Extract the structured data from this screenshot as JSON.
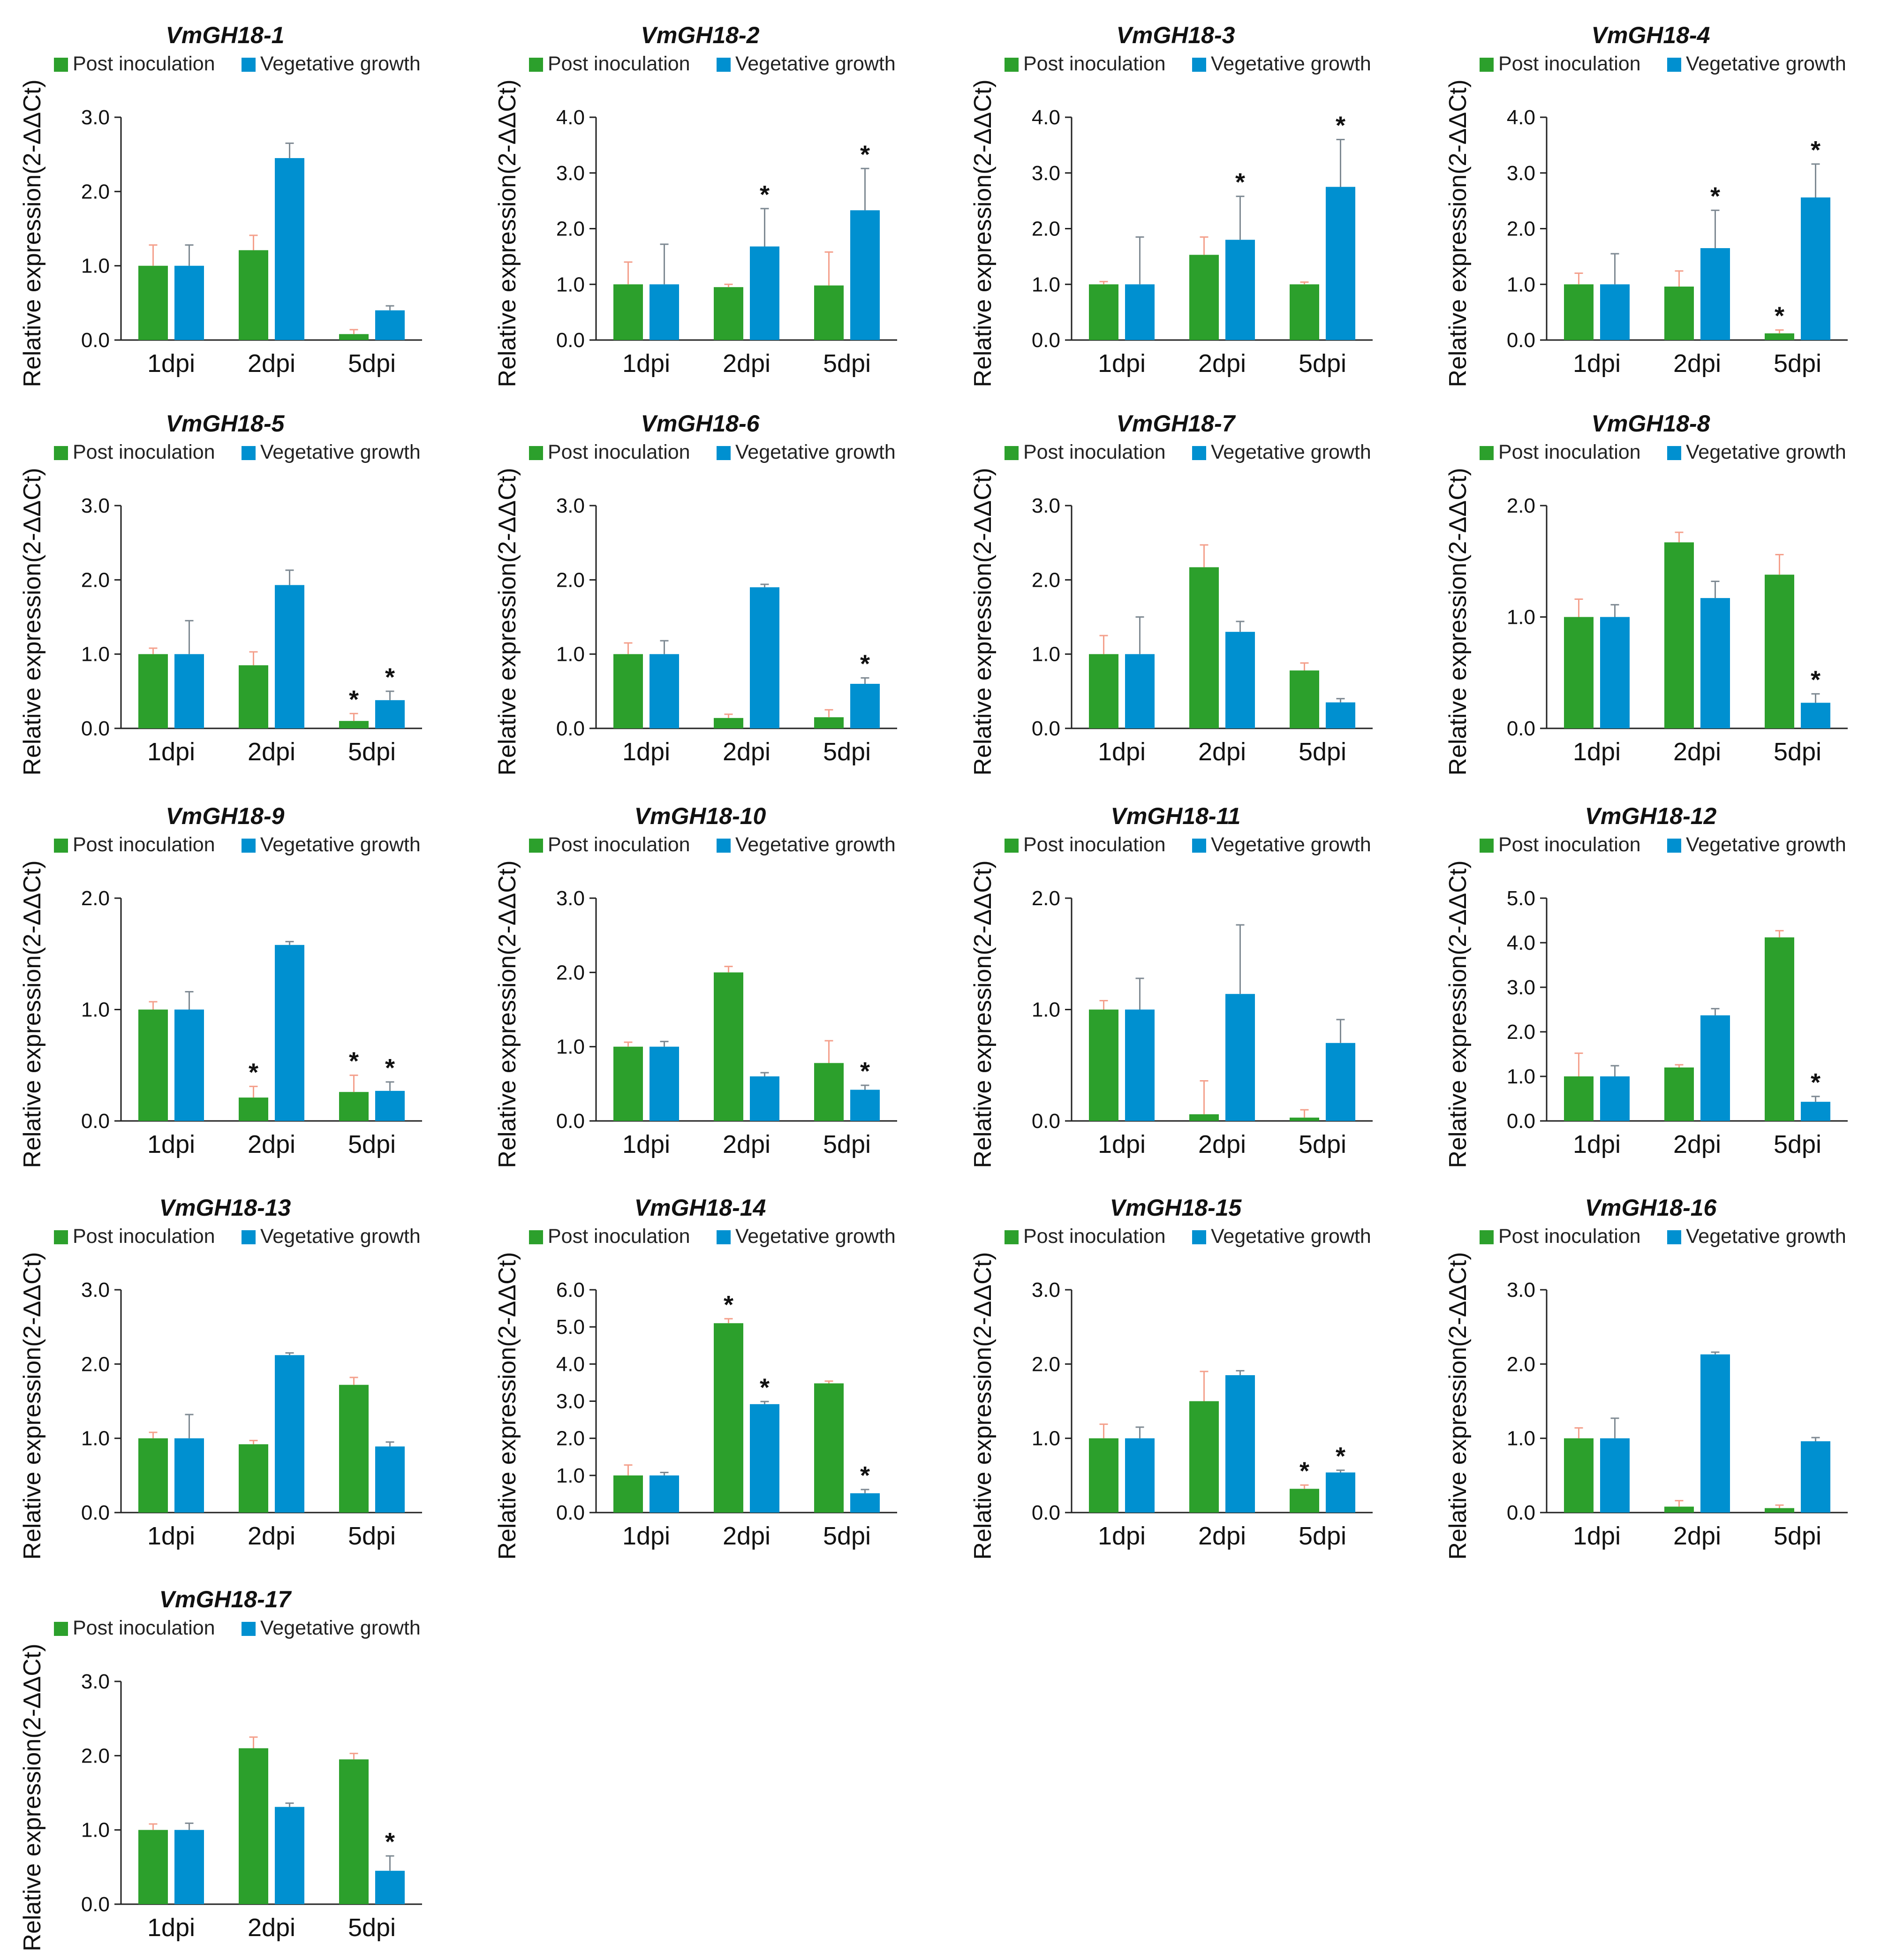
{
  "legend": {
    "items": [
      {
        "label": "Post inoculation",
        "color": "#2ca02c"
      },
      {
        "label": "Vegetative growth",
        "color": "#0090d0"
      }
    ]
  },
  "chart_data": [
    {
      "type": "bar",
      "title": "VmGH18-1",
      "ylabel": "Relative expression(2-ΔΔCt)",
      "categories": [
        "1dpi",
        "2dpi",
        "5dpi"
      ],
      "ylim": [
        0,
        3.0
      ],
      "yticks": [
        0.0,
        1.0,
        2.0,
        3.0
      ],
      "series": [
        {
          "name": "Post inoculation",
          "values": [
            1.0,
            1.21,
            0.08
          ],
          "errors": [
            0.28,
            0.2,
            0.06
          ]
        },
        {
          "name": "Vegetative growth",
          "values": [
            1.0,
            2.45,
            0.4
          ],
          "errors": [
            0.28,
            0.2,
            0.06
          ]
        }
      ],
      "significance": [
        {
          "series": 0,
          "categories": []
        },
        {
          "series": 1,
          "categories": []
        }
      ]
    },
    {
      "type": "bar",
      "title": "VmGH18-2",
      "ylabel": "Relative expression(2-ΔΔCt)",
      "categories": [
        "1dpi",
        "2dpi",
        "5dpi"
      ],
      "ylim": [
        0,
        4.0
      ],
      "yticks": [
        0.0,
        1.0,
        2.0,
        3.0,
        4.0
      ],
      "series": [
        {
          "name": "Post inoculation",
          "values": [
            1.0,
            0.95,
            0.98
          ],
          "errors": [
            0.4,
            0.05,
            0.6
          ]
        },
        {
          "name": "Vegetative growth",
          "values": [
            1.0,
            1.68,
            2.33
          ],
          "errors": [
            0.72,
            0.68,
            0.75
          ]
        }
      ],
      "significance": [
        {
          "series": 0,
          "categories": []
        },
        {
          "series": 1,
          "categories": [
            "2dpi",
            "5dpi"
          ]
        }
      ]
    },
    {
      "type": "bar",
      "title": "VmGH18-3",
      "ylabel": "Relative expression(2-ΔΔCt)",
      "categories": [
        "1dpi",
        "2dpi",
        "5dpi"
      ],
      "ylim": [
        0,
        4.0
      ],
      "yticks": [
        0.0,
        1.0,
        2.0,
        3.0,
        4.0
      ],
      "series": [
        {
          "name": "Post inoculation",
          "values": [
            1.0,
            1.53,
            1.0
          ],
          "errors": [
            0.05,
            0.32,
            0.04
          ]
        },
        {
          "name": "Vegetative growth",
          "values": [
            1.0,
            1.8,
            2.75
          ],
          "errors": [
            0.85,
            0.78,
            0.85
          ]
        }
      ],
      "significance": [
        {
          "series": 0,
          "categories": []
        },
        {
          "series": 1,
          "categories": [
            "2dpi",
            "5dpi"
          ]
        }
      ]
    },
    {
      "type": "bar",
      "title": "VmGH18-4",
      "ylabel": "Relative expression(2-ΔΔCt)",
      "categories": [
        "1dpi",
        "2dpi",
        "5dpi"
      ],
      "ylim": [
        0,
        4.0
      ],
      "yticks": [
        0.0,
        1.0,
        2.0,
        3.0,
        4.0
      ],
      "series": [
        {
          "name": "Post inoculation",
          "values": [
            1.0,
            0.96,
            0.12
          ],
          "errors": [
            0.2,
            0.28,
            0.06
          ]
        },
        {
          "name": "Vegetative growth",
          "values": [
            1.0,
            1.65,
            2.56
          ],
          "errors": [
            0.55,
            0.68,
            0.6
          ]
        }
      ],
      "significance": [
        {
          "series": 0,
          "categories": [
            "5dpi"
          ]
        },
        {
          "series": 1,
          "categories": [
            "2dpi",
            "5dpi"
          ]
        }
      ]
    },
    {
      "type": "bar",
      "title": "VmGH18-5",
      "ylabel": "Relative expression(2-ΔΔCt)",
      "categories": [
        "1dpi",
        "2dpi",
        "5dpi"
      ],
      "ylim": [
        0,
        3.0
      ],
      "yticks": [
        0.0,
        1.0,
        2.0,
        3.0
      ],
      "series": [
        {
          "name": "Post inoculation",
          "values": [
            1.0,
            0.85,
            0.1
          ],
          "errors": [
            0.08,
            0.18,
            0.1
          ]
        },
        {
          "name": "Vegetative growth",
          "values": [
            1.0,
            1.93,
            0.38
          ],
          "errors": [
            0.45,
            0.2,
            0.12
          ]
        }
      ],
      "significance": [
        {
          "series": 0,
          "categories": [
            "5dpi"
          ]
        },
        {
          "series": 1,
          "categories": [
            "5dpi"
          ]
        }
      ]
    },
    {
      "type": "bar",
      "title": "VmGH18-6",
      "ylabel": "Relative expression(2-ΔΔCt)",
      "categories": [
        "1dpi",
        "2dpi",
        "5dpi"
      ],
      "ylim": [
        0,
        3.0
      ],
      "yticks": [
        0.0,
        1.0,
        2.0,
        3.0
      ],
      "series": [
        {
          "name": "Post inoculation",
          "values": [
            1.0,
            0.14,
            0.15
          ],
          "errors": [
            0.15,
            0.05,
            0.1
          ]
        },
        {
          "name": "Vegetative growth",
          "values": [
            1.0,
            1.9,
            0.6
          ],
          "errors": [
            0.18,
            0.04,
            0.08
          ]
        }
      ],
      "significance": [
        {
          "series": 0,
          "categories": []
        },
        {
          "series": 1,
          "categories": [
            "5dpi"
          ]
        }
      ]
    },
    {
      "type": "bar",
      "title": "VmGH18-7",
      "ylabel": "Relative expression(2-ΔΔCt)",
      "categories": [
        "1dpi",
        "2dpi",
        "5dpi"
      ],
      "ylim": [
        0,
        3.0
      ],
      "yticks": [
        0.0,
        1.0,
        2.0,
        3.0
      ],
      "series": [
        {
          "name": "Post inoculation",
          "values": [
            1.0,
            2.17,
            0.78
          ],
          "errors": [
            0.25,
            0.3,
            0.1
          ]
        },
        {
          "name": "Vegetative growth",
          "values": [
            1.0,
            1.3,
            0.35
          ],
          "errors": [
            0.5,
            0.14,
            0.05
          ]
        }
      ],
      "significance": [
        {
          "series": 0,
          "categories": []
        },
        {
          "series": 1,
          "categories": []
        }
      ]
    },
    {
      "type": "bar",
      "title": "VmGH18-8",
      "ylabel": "Relative expression(2-ΔΔCt)",
      "categories": [
        "1dpi",
        "2dpi",
        "5dpi"
      ],
      "ylim": [
        0,
        2.0
      ],
      "yticks": [
        0.0,
        1.0,
        2.0
      ],
      "series": [
        {
          "name": "Post inoculation",
          "values": [
            1.0,
            1.67,
            1.38
          ],
          "errors": [
            0.16,
            0.09,
            0.18
          ]
        },
        {
          "name": "Vegetative growth",
          "values": [
            1.0,
            1.17,
            0.23
          ],
          "errors": [
            0.11,
            0.15,
            0.08
          ]
        }
      ],
      "significance": [
        {
          "series": 0,
          "categories": []
        },
        {
          "series": 1,
          "categories": [
            "5dpi"
          ]
        }
      ]
    },
    {
      "type": "bar",
      "title": "VmGH18-9",
      "ylabel": "Relative expression(2-ΔΔCt)",
      "categories": [
        "1dpi",
        "2dpi",
        "5dpi"
      ],
      "ylim": [
        0,
        2.0
      ],
      "yticks": [
        0.0,
        1.0,
        2.0
      ],
      "series": [
        {
          "name": "Post inoculation",
          "values": [
            1.0,
            0.21,
            0.26
          ],
          "errors": [
            0.07,
            0.1,
            0.15
          ]
        },
        {
          "name": "Vegetative growth",
          "values": [
            1.0,
            1.58,
            0.27
          ],
          "errors": [
            0.16,
            0.03,
            0.08
          ]
        }
      ],
      "significance": [
        {
          "series": 0,
          "categories": [
            "2dpi",
            "5dpi"
          ]
        },
        {
          "series": 1,
          "categories": [
            "5dpi"
          ]
        }
      ]
    },
    {
      "type": "bar",
      "title": "VmGH18-10",
      "ylabel": "Relative expression(2-ΔΔCt)",
      "categories": [
        "1dpi",
        "2dpi",
        "5dpi"
      ],
      "ylim": [
        0,
        3.0
      ],
      "yticks": [
        0.0,
        1.0,
        2.0,
        3.0
      ],
      "series": [
        {
          "name": "Post inoculation",
          "values": [
            1.0,
            2.0,
            0.78
          ],
          "errors": [
            0.06,
            0.08,
            0.3
          ]
        },
        {
          "name": "Vegetative growth",
          "values": [
            1.0,
            0.6,
            0.42
          ],
          "errors": [
            0.07,
            0.05,
            0.06
          ]
        }
      ],
      "significance": [
        {
          "series": 0,
          "categories": []
        },
        {
          "series": 1,
          "categories": [
            "5dpi"
          ]
        }
      ]
    },
    {
      "type": "bar",
      "title": "VmGH18-11",
      "ylabel": "Relative expression(2-ΔΔCt)",
      "categories": [
        "1dpi",
        "2dpi",
        "5dpi"
      ],
      "ylim": [
        0,
        2.0
      ],
      "yticks": [
        0.0,
        1.0,
        2.0
      ],
      "series": [
        {
          "name": "Post inoculation",
          "values": [
            1.0,
            0.06,
            0.03
          ],
          "errors": [
            0.08,
            0.3,
            0.07
          ]
        },
        {
          "name": "Vegetative growth",
          "values": [
            1.0,
            1.14,
            0.7
          ],
          "errors": [
            0.28,
            0.62,
            0.21
          ]
        }
      ],
      "significance": [
        {
          "series": 0,
          "categories": []
        },
        {
          "series": 1,
          "categories": []
        }
      ]
    },
    {
      "type": "bar",
      "title": "VmGH18-12",
      "ylabel": "Relative expression(2-ΔΔCt)",
      "categories": [
        "1dpi",
        "2dpi",
        "5dpi"
      ],
      "ylim": [
        0,
        5.0
      ],
      "yticks": [
        0.0,
        1.0,
        2.0,
        3.0,
        4.0,
        5.0
      ],
      "series": [
        {
          "name": "Post inoculation",
          "values": [
            1.0,
            1.2,
            4.12
          ],
          "errors": [
            0.52,
            0.06,
            0.15
          ]
        },
        {
          "name": "Vegetative growth",
          "values": [
            1.0,
            2.37,
            0.43
          ],
          "errors": [
            0.24,
            0.15,
            0.12
          ]
        }
      ],
      "significance": [
        {
          "series": 0,
          "categories": []
        },
        {
          "series": 1,
          "categories": [
            "5dpi"
          ]
        }
      ]
    },
    {
      "type": "bar",
      "title": "VmGH18-13",
      "ylabel": "Relative expression(2-ΔΔCt)",
      "categories": [
        "1dpi",
        "2dpi",
        "5dpi"
      ],
      "ylim": [
        0,
        3.0
      ],
      "yticks": [
        0.0,
        1.0,
        2.0,
        3.0
      ],
      "series": [
        {
          "name": "Post inoculation",
          "values": [
            1.0,
            0.92,
            1.72
          ],
          "errors": [
            0.08,
            0.05,
            0.1
          ]
        },
        {
          "name": "Vegetative growth",
          "values": [
            1.0,
            2.12,
            0.89
          ],
          "errors": [
            0.32,
            0.03,
            0.06
          ]
        }
      ],
      "significance": [
        {
          "series": 0,
          "categories": []
        },
        {
          "series": 1,
          "categories": []
        }
      ]
    },
    {
      "type": "bar",
      "title": "VmGH18-14",
      "ylabel": "Relative expression(2-ΔΔCt)",
      "categories": [
        "1dpi",
        "2dpi",
        "5dpi"
      ],
      "ylim": [
        0,
        6.0
      ],
      "yticks": [
        0.0,
        1.0,
        2.0,
        3.0,
        4.0,
        5.0,
        6.0
      ],
      "series": [
        {
          "name": "Post inoculation",
          "values": [
            1.0,
            5.1,
            3.48
          ],
          "errors": [
            0.28,
            0.12,
            0.06
          ]
        },
        {
          "name": "Vegetative growth",
          "values": [
            1.0,
            2.92,
            0.52
          ],
          "errors": [
            0.08,
            0.07,
            0.1
          ]
        }
      ],
      "significance": [
        {
          "series": 0,
          "categories": [
            "2dpi"
          ]
        },
        {
          "series": 1,
          "categories": [
            "2dpi",
            "5dpi"
          ]
        }
      ]
    },
    {
      "type": "bar",
      "title": "VmGH18-15",
      "ylabel": "Relative expression(2-ΔΔCt)",
      "categories": [
        "1dpi",
        "2dpi",
        "5dpi"
      ],
      "ylim": [
        0,
        3.0
      ],
      "yticks": [
        0.0,
        1.0,
        2.0,
        3.0
      ],
      "series": [
        {
          "name": "Post inoculation",
          "values": [
            1.0,
            1.5,
            0.32
          ],
          "errors": [
            0.19,
            0.4,
            0.05
          ]
        },
        {
          "name": "Vegetative growth",
          "values": [
            1.0,
            1.85,
            0.54
          ],
          "errors": [
            0.15,
            0.06,
            0.03
          ]
        }
      ],
      "significance": [
        {
          "series": 0,
          "categories": [
            "5dpi"
          ]
        },
        {
          "series": 1,
          "categories": [
            "5dpi"
          ]
        }
      ]
    },
    {
      "type": "bar",
      "title": "VmGH18-16",
      "ylabel": "Relative expression(2-ΔΔCt)",
      "categories": [
        "1dpi",
        "2dpi",
        "5dpi"
      ],
      "ylim": [
        0,
        3.0
      ],
      "yticks": [
        0.0,
        1.0,
        2.0,
        3.0
      ],
      "series": [
        {
          "name": "Post inoculation",
          "values": [
            1.0,
            0.08,
            0.06
          ],
          "errors": [
            0.14,
            0.08,
            0.04
          ]
        },
        {
          "name": "Vegetative growth",
          "values": [
            1.0,
            2.13,
            0.96
          ],
          "errors": [
            0.27,
            0.03,
            0.05
          ]
        }
      ],
      "significance": [
        {
          "series": 0,
          "categories": []
        },
        {
          "series": 1,
          "categories": []
        }
      ]
    },
    {
      "type": "bar",
      "title": "VmGH18-17",
      "ylabel": "Relative expression(2-ΔΔCt)",
      "categories": [
        "1dpi",
        "2dpi",
        "5dpi"
      ],
      "ylim": [
        0,
        3.0
      ],
      "yticks": [
        0.0,
        1.0,
        2.0,
        3.0
      ],
      "series": [
        {
          "name": "Post inoculation",
          "values": [
            1.0,
            2.1,
            1.95
          ],
          "errors": [
            0.08,
            0.15,
            0.08
          ]
        },
        {
          "name": "Vegetative growth",
          "values": [
            1.0,
            1.31,
            0.45
          ],
          "errors": [
            0.09,
            0.05,
            0.2
          ]
        }
      ],
      "significance": [
        {
          "series": 0,
          "categories": []
        },
        {
          "series": 1,
          "categories": [
            "5dpi"
          ]
        }
      ]
    }
  ]
}
